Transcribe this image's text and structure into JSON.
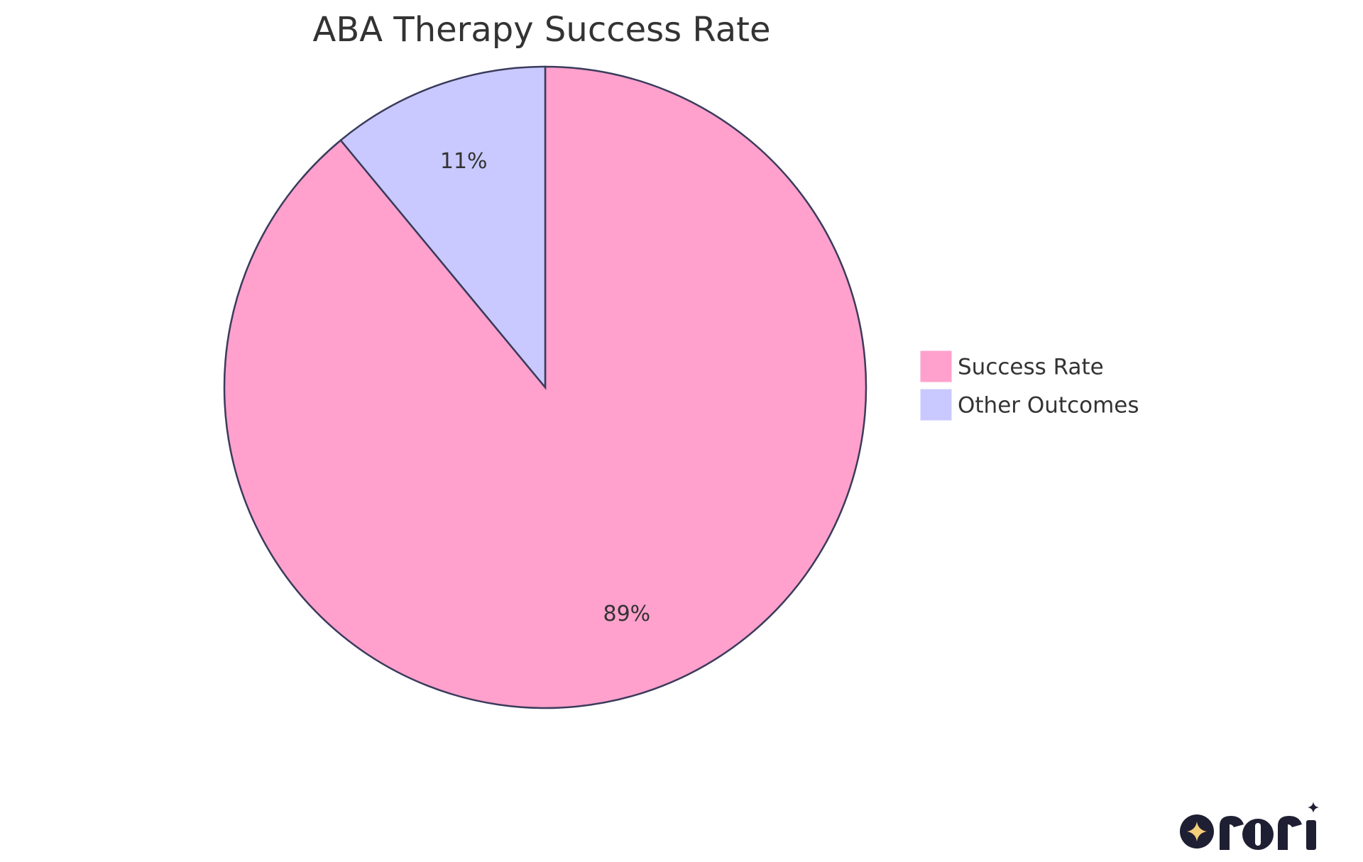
{
  "chart_data": {
    "type": "pie",
    "title": "ABA Therapy Success Rate",
    "categories": [
      "Success Rate",
      "Other Outcomes"
    ],
    "values": [
      89,
      11
    ],
    "slice_labels": [
      "89%",
      "11%"
    ],
    "colors": [
      "#FFA1CC",
      "#C9C9FF"
    ],
    "stroke_color": "#3B3B5C",
    "legend_position": "right",
    "start_angle": "12 o'clock",
    "direction": "clockwise"
  },
  "logo": {
    "text": "rori",
    "accent_color": "#F5CE7A",
    "ink_color": "#1F1F33"
  }
}
